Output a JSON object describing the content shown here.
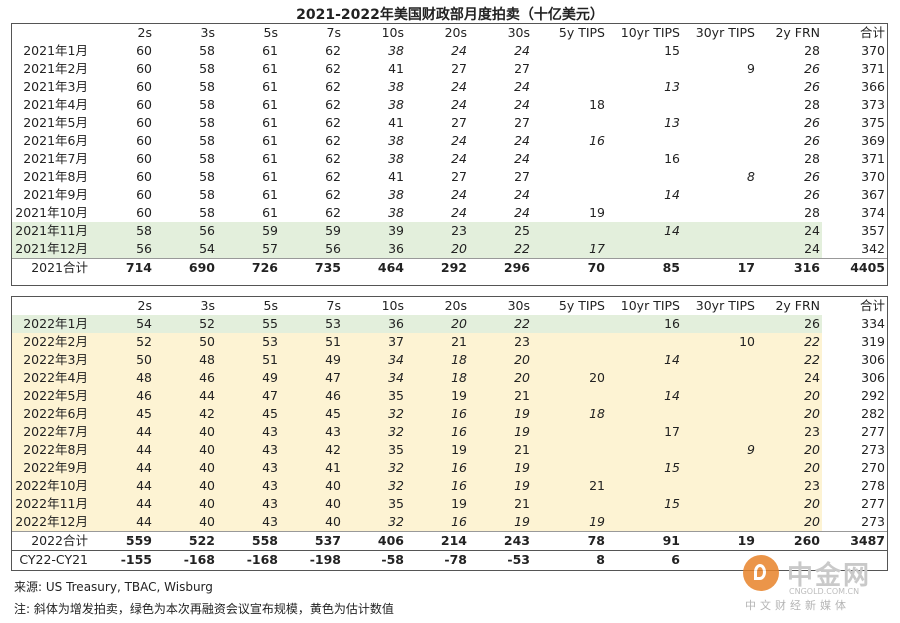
{
  "title": "2021-2022年美国财政部月度拍卖（十亿美元）",
  "headers": [
    "",
    "2s",
    "3s",
    "5s",
    "7s",
    "10s",
    "20s",
    "30s",
    "5y TIPS",
    "10yr TIPS",
    "30yr TIPS",
    "2y FRN",
    "合计"
  ],
  "table2021": [
    {
      "m": "2021年1月",
      "shade": "",
      "c": [
        "60",
        "58",
        "61",
        "62",
        "38",
        "24",
        "24",
        "",
        "15",
        "",
        "28",
        "370"
      ],
      "it": [
        4,
        5,
        6
      ]
    },
    {
      "m": "2021年2月",
      "shade": "",
      "c": [
        "60",
        "58",
        "61",
        "62",
        "41",
        "27",
        "27",
        "",
        "",
        "9",
        "26",
        "371"
      ],
      "it": [
        10
      ]
    },
    {
      "m": "2021年3月",
      "shade": "",
      "c": [
        "60",
        "58",
        "61",
        "62",
        "38",
        "24",
        "24",
        "",
        "13",
        "",
        "26",
        "366"
      ],
      "it": [
        4,
        5,
        6,
        8,
        10
      ]
    },
    {
      "m": "2021年4月",
      "shade": "",
      "c": [
        "60",
        "58",
        "61",
        "62",
        "38",
        "24",
        "24",
        "18",
        "",
        "",
        "28",
        "373"
      ],
      "it": [
        4,
        5,
        6
      ]
    },
    {
      "m": "2021年5月",
      "shade": "",
      "c": [
        "60",
        "58",
        "61",
        "62",
        "41",
        "27",
        "27",
        "",
        "13",
        "",
        "26",
        "375"
      ],
      "it": [
        8,
        10
      ]
    },
    {
      "m": "2021年6月",
      "shade": "",
      "c": [
        "60",
        "58",
        "61",
        "62",
        "38",
        "24",
        "24",
        "16",
        "",
        "",
        "26",
        "369"
      ],
      "it": [
        4,
        5,
        6,
        7,
        10
      ]
    },
    {
      "m": "2021年7月",
      "shade": "",
      "c": [
        "60",
        "58",
        "61",
        "62",
        "38",
        "24",
        "24",
        "",
        "16",
        "",
        "28",
        "371"
      ],
      "it": [
        4,
        5,
        6
      ]
    },
    {
      "m": "2021年8月",
      "shade": "",
      "c": [
        "60",
        "58",
        "61",
        "62",
        "41",
        "27",
        "27",
        "",
        "",
        "8",
        "26",
        "370"
      ],
      "it": [
        9,
        10
      ]
    },
    {
      "m": "2021年9月",
      "shade": "",
      "c": [
        "60",
        "58",
        "61",
        "62",
        "38",
        "24",
        "24",
        "",
        "14",
        "",
        "26",
        "367"
      ],
      "it": [
        4,
        5,
        6,
        8,
        10
      ]
    },
    {
      "m": "2021年10月",
      "shade": "",
      "c": [
        "60",
        "58",
        "61",
        "62",
        "38",
        "24",
        "24",
        "19",
        "",
        "",
        "28",
        "374"
      ],
      "it": [
        4,
        5,
        6
      ]
    },
    {
      "m": "2021年11月",
      "shade": "green",
      "c": [
        "58",
        "56",
        "59",
        "59",
        "39",
        "23",
        "25",
        "",
        "14",
        "",
        "24",
        "357"
      ],
      "it": [
        8
      ]
    },
    {
      "m": "2021年12月",
      "shade": "green",
      "c": [
        "56",
        "54",
        "57",
        "56",
        "36",
        "20",
        "22",
        "17",
        "",
        "",
        "24",
        "342"
      ],
      "it": [
        5,
        6,
        7
      ]
    }
  ],
  "total2021": {
    "m": "2021合计",
    "c": [
      "714",
      "690",
      "726",
      "735",
      "464",
      "292",
      "296",
      "70",
      "85",
      "17",
      "316",
      "4405"
    ]
  },
  "table2022": [
    {
      "m": "2022年1月",
      "shade": "green",
      "c": [
        "54",
        "52",
        "55",
        "53",
        "36",
        "20",
        "22",
        "",
        "16",
        "",
        "26",
        "334"
      ],
      "it": [
        5,
        6
      ]
    },
    {
      "m": "2022年2月",
      "shade": "yellow",
      "c": [
        "52",
        "50",
        "53",
        "51",
        "37",
        "21",
        "23",
        "",
        "",
        "10",
        "22",
        "319"
      ],
      "it": [
        10
      ]
    },
    {
      "m": "2022年3月",
      "shade": "yellow",
      "c": [
        "50",
        "48",
        "51",
        "49",
        "34",
        "18",
        "20",
        "",
        "14",
        "",
        "22",
        "306"
      ],
      "it": [
        4,
        5,
        6,
        8,
        10
      ]
    },
    {
      "m": "2022年4月",
      "shade": "yellow",
      "c": [
        "48",
        "46",
        "49",
        "47",
        "34",
        "18",
        "20",
        "20",
        "",
        "",
        "24",
        "306"
      ],
      "it": [
        4,
        5,
        6
      ]
    },
    {
      "m": "2022年5月",
      "shade": "yellow",
      "c": [
        "46",
        "44",
        "47",
        "46",
        "35",
        "19",
        "21",
        "",
        "14",
        "",
        "20",
        "292"
      ],
      "it": [
        8,
        10
      ]
    },
    {
      "m": "2022年6月",
      "shade": "yellow",
      "c": [
        "45",
        "42",
        "45",
        "45",
        "32",
        "16",
        "19",
        "18",
        "",
        "",
        "20",
        "282"
      ],
      "it": [
        4,
        5,
        6,
        7,
        10
      ]
    },
    {
      "m": "2022年7月",
      "shade": "yellow",
      "c": [
        "44",
        "40",
        "43",
        "43",
        "32",
        "16",
        "19",
        "",
        "17",
        "",
        "23",
        "277"
      ],
      "it": [
        4,
        5,
        6
      ]
    },
    {
      "m": "2022年8月",
      "shade": "yellow",
      "c": [
        "44",
        "40",
        "43",
        "42",
        "35",
        "19",
        "21",
        "",
        "",
        "9",
        "20",
        "273"
      ],
      "it": [
        9,
        10
      ]
    },
    {
      "m": "2022年9月",
      "shade": "yellow",
      "c": [
        "44",
        "40",
        "43",
        "41",
        "32",
        "16",
        "19",
        "",
        "15",
        "",
        "20",
        "270"
      ],
      "it": [
        4,
        5,
        6,
        8,
        10
      ]
    },
    {
      "m": "2022年10月",
      "shade": "yellow",
      "c": [
        "44",
        "40",
        "43",
        "40",
        "32",
        "16",
        "19",
        "21",
        "",
        "",
        "23",
        "278"
      ],
      "it": [
        4,
        5,
        6
      ]
    },
    {
      "m": "2022年11月",
      "shade": "yellow",
      "c": [
        "44",
        "40",
        "43",
        "40",
        "35",
        "19",
        "21",
        "",
        "15",
        "",
        "20",
        "277"
      ],
      "it": [
        8,
        10
      ]
    },
    {
      "m": "2022年12月",
      "shade": "yellow",
      "c": [
        "44",
        "40",
        "43",
        "40",
        "32",
        "16",
        "19",
        "19",
        "",
        "",
        "20",
        "273"
      ],
      "it": [
        4,
        5,
        6,
        7,
        10
      ]
    }
  ],
  "total2022": {
    "m": "2022合计",
    "c": [
      "559",
      "522",
      "558",
      "537",
      "406",
      "214",
      "243",
      "78",
      "91",
      "19",
      "260",
      "3487"
    ]
  },
  "diff": {
    "m": "CY22-CY21",
    "c": [
      "-155",
      "-168",
      "-168",
      "-198",
      "-58",
      "-78",
      "-53",
      "8",
      "6",
      "",
      "",
      ""
    ]
  },
  "source": "来源: US Treasury, TBAC, Wisburg",
  "note": "注: 斜体为增发拍卖，绿色为本次再融资会议宣布规模，黄色为估计数值",
  "watermark": {
    "name": "中金网",
    "url": "CNGOLD.COM.CN",
    "tag": "中文财经新媒体"
  },
  "colors": {
    "green": "#e3efdc",
    "yellow": "#fdf3d3"
  }
}
